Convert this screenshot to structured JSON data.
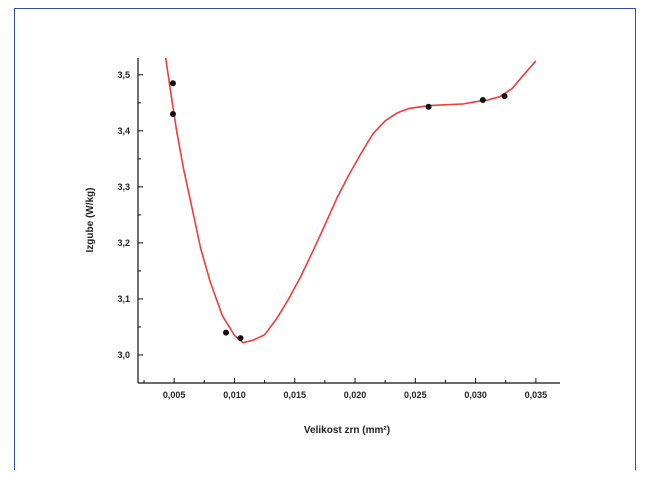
{
  "colors": {
    "frame": "#2f4fa8",
    "curve": "#f03c3c",
    "points": "#111111",
    "axes": "#111111"
  },
  "chart_data": {
    "type": "scatter",
    "xlabel": "Velikost zrn (mm²)",
    "ylabel": "Izgube (W/kg)",
    "xlim": [
      0.002,
      0.037
    ],
    "ylim": [
      2.95,
      3.53
    ],
    "x_ticks": [
      {
        "value": 0.005,
        "label": "0,005"
      },
      {
        "value": 0.01,
        "label": "0,010"
      },
      {
        "value": 0.015,
        "label": "0,015"
      },
      {
        "value": 0.02,
        "label": "0,020"
      },
      {
        "value": 0.025,
        "label": "0,025"
      },
      {
        "value": 0.03,
        "label": "0,030"
      },
      {
        "value": 0.035,
        "label": "0,035"
      }
    ],
    "y_ticks": [
      {
        "value": 3.0,
        "label": "3,0"
      },
      {
        "value": 3.1,
        "label": "3,1"
      },
      {
        "value": 3.2,
        "label": "3,2"
      },
      {
        "value": 3.3,
        "label": "3,3"
      },
      {
        "value": 3.4,
        "label": "3,4"
      },
      {
        "value": 3.5,
        "label": "3,5"
      }
    ],
    "series": [
      {
        "kind": "points",
        "x": [
          0.0049,
          0.0049,
          0.0093,
          0.0105,
          0.0261,
          0.0306,
          0.0324
        ],
        "y": [
          3.485,
          3.43,
          3.04,
          3.03,
          3.443,
          3.455,
          3.462
        ]
      },
      {
        "kind": "fit-line",
        "x": [
          0.0043,
          0.0047,
          0.0052,
          0.0058,
          0.0064,
          0.0072,
          0.008,
          0.009,
          0.01,
          0.0107,
          0.0115,
          0.0125,
          0.0135,
          0.0145,
          0.0155,
          0.0165,
          0.0175,
          0.0185,
          0.0195,
          0.0205,
          0.0215,
          0.0225,
          0.0235,
          0.0245,
          0.0255,
          0.0262,
          0.027,
          0.028,
          0.029,
          0.03,
          0.031,
          0.032,
          0.033,
          0.034,
          0.035
        ],
        "y": [
          3.53,
          3.47,
          3.4,
          3.33,
          3.27,
          3.19,
          3.13,
          3.07,
          3.035,
          3.022,
          3.026,
          3.036,
          3.065,
          3.1,
          3.14,
          3.185,
          3.232,
          3.28,
          3.322,
          3.36,
          3.395,
          3.418,
          3.432,
          3.44,
          3.443,
          3.445,
          3.446,
          3.447,
          3.448,
          3.452,
          3.455,
          3.461,
          3.475,
          3.5,
          3.525
        ]
      }
    ]
  }
}
